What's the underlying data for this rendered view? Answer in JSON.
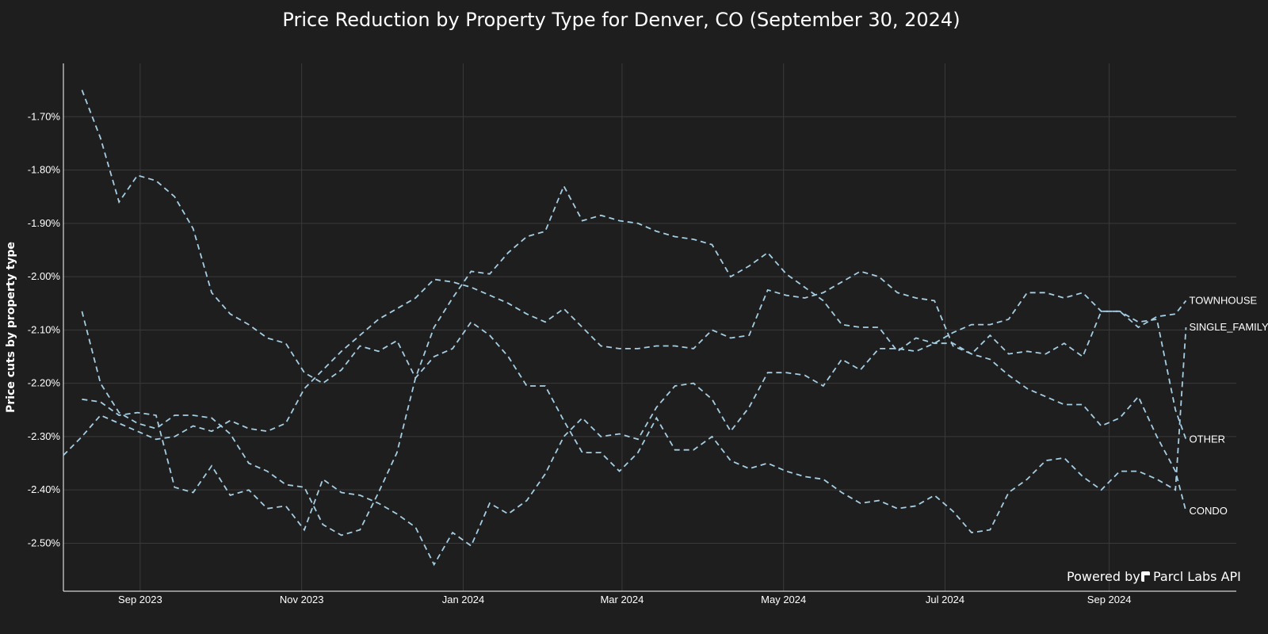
{
  "chart_data": {
    "type": "line",
    "title": "Price Reduction by Property Type for Denver, CO (September 30, 2024)",
    "xlabel": "",
    "ylabel": "Price cuts by property type",
    "y_ticks": [
      "-1.70%",
      "-1.80%",
      "-1.90%",
      "-2.00%",
      "-2.10%",
      "-2.20%",
      "-2.30%",
      "-2.40%",
      "-2.50%"
    ],
    "y_tick_values": [
      -1.7,
      -1.8,
      -1.9,
      -2.0,
      -2.1,
      -2.2,
      -2.3,
      -2.4,
      -2.5
    ],
    "ylim": [
      -2.59,
      -1.6
    ],
    "xlim": [
      "2023-08-03",
      "2024-10-19"
    ],
    "x_ticks": [
      {
        "date": "2023-09-01",
        "label": "Sep 2023"
      },
      {
        "date": "2023-11-01",
        "label": "Nov 2023"
      },
      {
        "date": "2024-01-01",
        "label": "Jan 2024"
      },
      {
        "date": "2024-03-01",
        "label": "Mar 2024"
      },
      {
        "date": "2024-05-01",
        "label": "May 2024"
      },
      {
        "date": "2024-07-01",
        "label": "Jul 2024"
      },
      {
        "date": "2024-09-01",
        "label": "Sep 2024"
      }
    ],
    "grid": true,
    "legend": "none",
    "line_color": "#a6cee3",
    "watermark": {
      "text": "Powered by",
      "brand": "Parcl Labs API"
    },
    "series": [
      {
        "name": "TOWNHOUSE",
        "points": [
          [
            "2023-08-03",
            -2.335
          ],
          [
            "2023-08-10",
            -2.3
          ],
          [
            "2023-08-17",
            -2.26
          ],
          [
            "2023-08-24",
            -2.275
          ],
          [
            "2023-08-31",
            -2.29
          ],
          [
            "2023-09-07",
            -2.305
          ],
          [
            "2023-09-14",
            -2.3
          ],
          [
            "2023-09-21",
            -2.28
          ],
          [
            "2023-09-28",
            -2.29
          ],
          [
            "2023-10-05",
            -2.27
          ],
          [
            "2023-10-12",
            -2.285
          ],
          [
            "2023-10-19",
            -2.29
          ],
          [
            "2023-10-26",
            -2.275
          ],
          [
            "2023-11-02",
            -2.21
          ],
          [
            "2023-11-09",
            -2.175
          ],
          [
            "2023-11-16",
            -2.14
          ],
          [
            "2023-11-23",
            -2.11
          ],
          [
            "2023-11-30",
            -2.08
          ],
          [
            "2023-12-07",
            -2.06
          ],
          [
            "2023-12-14",
            -2.04
          ],
          [
            "2023-12-21",
            -2.005
          ],
          [
            "2023-12-28",
            -2.01
          ],
          [
            "2024-01-04",
            -2.02
          ],
          [
            "2024-01-11",
            -2.035
          ],
          [
            "2024-01-18",
            -2.05
          ],
          [
            "2024-01-25",
            -2.07
          ],
          [
            "2024-02-01",
            -2.085
          ],
          [
            "2024-02-08",
            -2.06
          ],
          [
            "2024-02-15",
            -2.095
          ],
          [
            "2024-02-22",
            -2.13
          ],
          [
            "2024-02-29",
            -2.135
          ],
          [
            "2024-03-07",
            -2.135
          ],
          [
            "2024-03-14",
            -2.13
          ],
          [
            "2024-03-21",
            -2.13
          ],
          [
            "2024-03-28",
            -2.135
          ],
          [
            "2024-04-04",
            -2.1
          ],
          [
            "2024-04-11",
            -2.115
          ],
          [
            "2024-04-18",
            -2.11
          ],
          [
            "2024-04-25",
            -2.025
          ],
          [
            "2024-05-02",
            -2.035
          ],
          [
            "2024-05-09",
            -2.04
          ],
          [
            "2024-05-16",
            -2.03
          ],
          [
            "2024-05-23",
            -2.01
          ],
          [
            "2024-05-30",
            -1.99
          ],
          [
            "2024-06-06",
            -2.0
          ],
          [
            "2024-06-13",
            -2.03
          ],
          [
            "2024-06-20",
            -2.04
          ],
          [
            "2024-06-27",
            -2.045
          ],
          [
            "2024-07-04",
            -2.13
          ],
          [
            "2024-07-11",
            -2.145
          ],
          [
            "2024-07-18",
            -2.11
          ],
          [
            "2024-07-25",
            -2.145
          ],
          [
            "2024-08-01",
            -2.14
          ],
          [
            "2024-08-08",
            -2.145
          ],
          [
            "2024-08-15",
            -2.125
          ],
          [
            "2024-08-22",
            -2.15
          ],
          [
            "2024-08-29",
            -2.065
          ],
          [
            "2024-09-05",
            -2.065
          ],
          [
            "2024-09-12",
            -2.095
          ],
          [
            "2024-09-19",
            -2.075
          ],
          [
            "2024-09-26",
            -2.07
          ],
          [
            "2024-09-30",
            -2.045
          ]
        ]
      },
      {
        "name": "SINGLE_FAMILY",
        "points": [
          [
            "2023-08-10",
            -1.65
          ],
          [
            "2023-08-17",
            -1.74
          ],
          [
            "2023-08-24",
            -1.86
          ],
          [
            "2023-08-31",
            -1.81
          ],
          [
            "2023-09-07",
            -1.82
          ],
          [
            "2023-09-14",
            -1.85
          ],
          [
            "2023-09-21",
            -1.91
          ],
          [
            "2023-09-28",
            -2.03
          ],
          [
            "2023-10-05",
            -2.07
          ],
          [
            "2023-10-12",
            -2.09
          ],
          [
            "2023-10-19",
            -2.115
          ],
          [
            "2023-10-26",
            -2.125
          ],
          [
            "2023-11-02",
            -2.18
          ],
          [
            "2023-11-09",
            -2.2
          ],
          [
            "2023-11-16",
            -2.175
          ],
          [
            "2023-11-23",
            -2.13
          ],
          [
            "2023-11-30",
            -2.14
          ],
          [
            "2023-12-07",
            -2.12
          ],
          [
            "2023-12-14",
            -2.19
          ],
          [
            "2023-12-21",
            -2.15
          ],
          [
            "2023-12-28",
            -2.135
          ],
          [
            "2024-01-04",
            -2.085
          ],
          [
            "2024-01-11",
            -2.11
          ],
          [
            "2024-01-18",
            -2.15
          ],
          [
            "2024-01-25",
            -2.205
          ],
          [
            "2024-02-01",
            -2.205
          ],
          [
            "2024-02-08",
            -2.27
          ],
          [
            "2024-02-15",
            -2.33
          ],
          [
            "2024-02-22",
            -2.33
          ],
          [
            "2024-02-29",
            -2.365
          ],
          [
            "2024-03-07",
            -2.33
          ],
          [
            "2024-03-14",
            -2.265
          ],
          [
            "2024-03-21",
            -2.325
          ],
          [
            "2024-03-28",
            -2.325
          ],
          [
            "2024-04-04",
            -2.3
          ],
          [
            "2024-04-11",
            -2.345
          ],
          [
            "2024-04-18",
            -2.36
          ],
          [
            "2024-04-25",
            -2.35
          ],
          [
            "2024-05-02",
            -2.365
          ],
          [
            "2024-05-09",
            -2.375
          ],
          [
            "2024-05-16",
            -2.38
          ],
          [
            "2024-05-23",
            -2.405
          ],
          [
            "2024-05-30",
            -2.425
          ],
          [
            "2024-06-06",
            -2.42
          ],
          [
            "2024-06-13",
            -2.435
          ],
          [
            "2024-06-20",
            -2.43
          ],
          [
            "2024-06-27",
            -2.41
          ],
          [
            "2024-07-04",
            -2.44
          ],
          [
            "2024-07-11",
            -2.48
          ],
          [
            "2024-07-18",
            -2.475
          ],
          [
            "2024-07-25",
            -2.405
          ],
          [
            "2024-08-01",
            -2.38
          ],
          [
            "2024-08-08",
            -2.345
          ],
          [
            "2024-08-15",
            -2.34
          ],
          [
            "2024-08-22",
            -2.375
          ],
          [
            "2024-08-29",
            -2.4
          ],
          [
            "2024-09-05",
            -2.365
          ],
          [
            "2024-09-12",
            -2.365
          ],
          [
            "2024-09-19",
            -2.38
          ],
          [
            "2024-09-26",
            -2.4
          ],
          [
            "2024-09-30",
            -2.095
          ]
        ]
      },
      {
        "name": "OTHER",
        "points": [
          [
            "2023-08-10",
            -2.23
          ],
          [
            "2023-08-17",
            -2.235
          ],
          [
            "2023-08-24",
            -2.26
          ],
          [
            "2023-08-31",
            -2.255
          ],
          [
            "2023-09-07",
            -2.26
          ],
          [
            "2023-09-14",
            -2.395
          ],
          [
            "2023-09-21",
            -2.405
          ],
          [
            "2023-09-28",
            -2.355
          ],
          [
            "2023-10-05",
            -2.41
          ],
          [
            "2023-10-12",
            -2.4
          ],
          [
            "2023-10-19",
            -2.435
          ],
          [
            "2023-10-26",
            -2.43
          ],
          [
            "2023-11-02",
            -2.475
          ],
          [
            "2023-11-09",
            -2.38
          ],
          [
            "2023-11-16",
            -2.405
          ],
          [
            "2023-11-23",
            -2.41
          ],
          [
            "2023-11-30",
            -2.425
          ],
          [
            "2023-12-07",
            -2.445
          ],
          [
            "2023-12-14",
            -2.47
          ],
          [
            "2023-12-21",
            -2.54
          ],
          [
            "2023-12-28",
            -2.48
          ],
          [
            "2024-01-04",
            -2.505
          ],
          [
            "2024-01-11",
            -2.425
          ],
          [
            "2024-01-18",
            -2.445
          ],
          [
            "2024-01-25",
            -2.42
          ],
          [
            "2024-02-01",
            -2.37
          ],
          [
            "2024-02-08",
            -2.3
          ],
          [
            "2024-02-15",
            -2.265
          ],
          [
            "2024-02-22",
            -2.3
          ],
          [
            "2024-02-29",
            -2.295
          ],
          [
            "2024-03-07",
            -2.305
          ],
          [
            "2024-03-14",
            -2.245
          ],
          [
            "2024-03-21",
            -2.205
          ],
          [
            "2024-03-28",
            -2.2
          ],
          [
            "2024-04-04",
            -2.23
          ],
          [
            "2024-04-11",
            -2.29
          ],
          [
            "2024-04-18",
            -2.245
          ],
          [
            "2024-04-25",
            -2.18
          ],
          [
            "2024-05-02",
            -2.18
          ],
          [
            "2024-05-09",
            -2.185
          ],
          [
            "2024-05-16",
            -2.205
          ],
          [
            "2024-05-23",
            -2.155
          ],
          [
            "2024-05-30",
            -2.175
          ],
          [
            "2024-06-06",
            -2.135
          ],
          [
            "2024-06-13",
            -2.135
          ],
          [
            "2024-06-20",
            -2.14
          ],
          [
            "2024-06-27",
            -2.125
          ],
          [
            "2024-07-04",
            -2.105
          ],
          [
            "2024-07-11",
            -2.09
          ],
          [
            "2024-07-18",
            -2.09
          ],
          [
            "2024-07-25",
            -2.08
          ],
          [
            "2024-08-01",
            -2.03
          ],
          [
            "2024-08-08",
            -2.03
          ],
          [
            "2024-08-15",
            -2.04
          ],
          [
            "2024-08-22",
            -2.03
          ],
          [
            "2024-08-29",
            -2.065
          ],
          [
            "2024-09-05",
            -2.065
          ],
          [
            "2024-09-12",
            -2.085
          ],
          [
            "2024-09-19",
            -2.08
          ],
          [
            "2024-09-26",
            -2.25
          ],
          [
            "2024-09-30",
            -2.305
          ]
        ]
      },
      {
        "name": "CONDO",
        "points": [
          [
            "2023-08-10",
            -2.065
          ],
          [
            "2023-08-17",
            -2.2
          ],
          [
            "2023-08-24",
            -2.255
          ],
          [
            "2023-08-31",
            -2.275
          ],
          [
            "2023-09-07",
            -2.285
          ],
          [
            "2023-09-14",
            -2.26
          ],
          [
            "2023-09-21",
            -2.26
          ],
          [
            "2023-09-28",
            -2.265
          ],
          [
            "2023-10-05",
            -2.295
          ],
          [
            "2023-10-12",
            -2.35
          ],
          [
            "2023-10-19",
            -2.365
          ],
          [
            "2023-10-26",
            -2.39
          ],
          [
            "2023-11-02",
            -2.395
          ],
          [
            "2023-11-09",
            -2.465
          ],
          [
            "2023-11-16",
            -2.485
          ],
          [
            "2023-11-23",
            -2.475
          ],
          [
            "2023-11-30",
            -2.405
          ],
          [
            "2023-12-07",
            -2.33
          ],
          [
            "2023-12-14",
            -2.19
          ],
          [
            "2023-12-21",
            -2.095
          ],
          [
            "2023-12-28",
            -2.04
          ],
          [
            "2024-01-04",
            -1.99
          ],
          [
            "2024-01-11",
            -1.995
          ],
          [
            "2024-01-18",
            -1.955
          ],
          [
            "2024-01-25",
            -1.925
          ],
          [
            "2024-02-01",
            -1.915
          ],
          [
            "2024-02-08",
            -1.83
          ],
          [
            "2024-02-15",
            -1.895
          ],
          [
            "2024-02-22",
            -1.885
          ],
          [
            "2024-02-29",
            -1.895
          ],
          [
            "2024-03-07",
            -1.9
          ],
          [
            "2024-03-14",
            -1.915
          ],
          [
            "2024-03-21",
            -1.925
          ],
          [
            "2024-03-28",
            -1.93
          ],
          [
            "2024-04-04",
            -1.94
          ],
          [
            "2024-04-11",
            -2.0
          ],
          [
            "2024-04-18",
            -1.98
          ],
          [
            "2024-04-25",
            -1.955
          ],
          [
            "2024-05-02",
            -1.995
          ],
          [
            "2024-05-09",
            -2.02
          ],
          [
            "2024-05-16",
            -2.045
          ],
          [
            "2024-05-23",
            -2.09
          ],
          [
            "2024-05-30",
            -2.095
          ],
          [
            "2024-06-06",
            -2.095
          ],
          [
            "2024-06-13",
            -2.14
          ],
          [
            "2024-06-20",
            -2.115
          ],
          [
            "2024-06-27",
            -2.125
          ],
          [
            "2024-07-04",
            -2.125
          ],
          [
            "2024-07-11",
            -2.145
          ],
          [
            "2024-07-18",
            -2.155
          ],
          [
            "2024-07-25",
            -2.185
          ],
          [
            "2024-08-01",
            -2.21
          ],
          [
            "2024-08-08",
            -2.225
          ],
          [
            "2024-08-15",
            -2.24
          ],
          [
            "2024-08-22",
            -2.24
          ],
          [
            "2024-08-29",
            -2.28
          ],
          [
            "2024-09-05",
            -2.265
          ],
          [
            "2024-09-12",
            -2.225
          ],
          [
            "2024-09-19",
            -2.3
          ],
          [
            "2024-09-26",
            -2.365
          ],
          [
            "2024-09-30",
            -2.44
          ]
        ]
      }
    ]
  }
}
